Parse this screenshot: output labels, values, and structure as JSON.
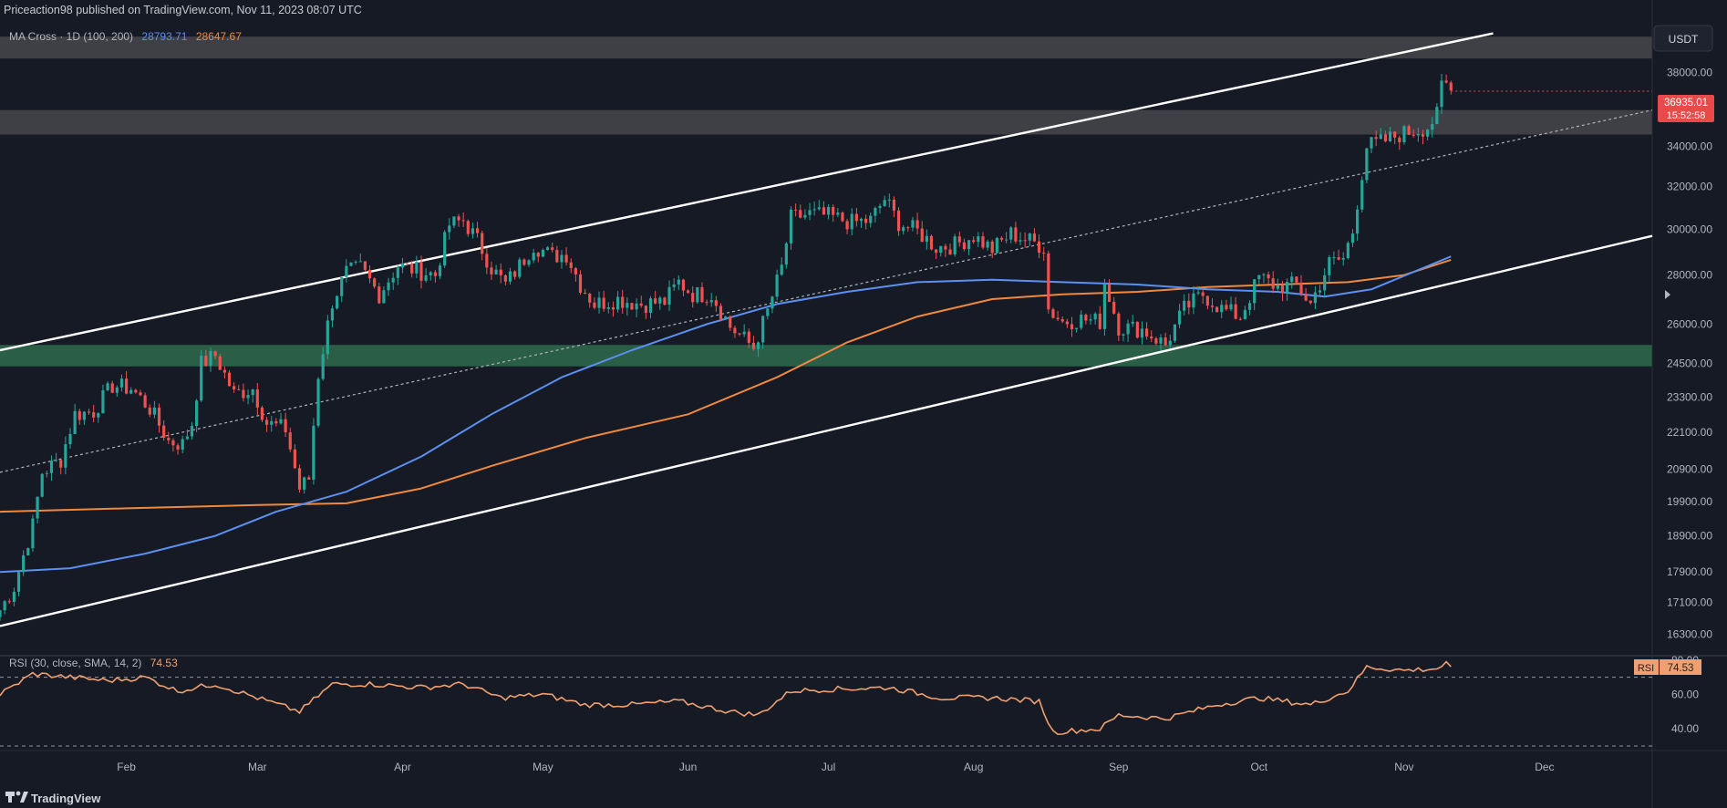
{
  "header": {
    "publisher": "Priceaction98 published on TradingView.com, Nov 11, 2023 08:07 UTC",
    "indicator_label": "MA Cross · 1D (100, 200)",
    "ma100_value": "28793.71",
    "ma200_value": "28647.67",
    "currency": "USDT"
  },
  "rsi": {
    "label": "RSI (30, close, SMA, 14, 2)",
    "value": "74.53",
    "badge_name": "RSI",
    "ticks": [
      "80.00",
      "60.00",
      "40.00"
    ]
  },
  "price_badge": {
    "price": "36935.01",
    "countdown": "15:52:58"
  },
  "footer": {
    "brand": "TradingView"
  },
  "colors": {
    "background": "#161a25",
    "bull": "#26a69a",
    "bear": "#ef5350",
    "ma100": "#5b8ff0",
    "ma200": "#f0883e",
    "rsi": "#f0a070",
    "zone_gray": "#4a4a4d",
    "zone_green": "#2e6b4c",
    "price_badge": "#e84a4a"
  },
  "chart_data": {
    "type": "candlestick",
    "x_ticks": [
      "Feb",
      "Mar",
      "Apr",
      "May",
      "Jun",
      "Jul",
      "Aug",
      "Sep",
      "Oct",
      "Nov",
      "Dec"
    ],
    "y_ticks": [
      "38000.00",
      "34000.00",
      "32000.00",
      "30000.00",
      "28000.00",
      "26000.00",
      "24500.00",
      "23300.00",
      "22100.00",
      "20900.00",
      "19900.00",
      "18900.00",
      "17900.00",
      "17100.00",
      "16300.00"
    ],
    "y_scale": "log",
    "y_range": [
      15800,
      41000
    ],
    "x_range": [
      "2023-01-05",
      "2023-12-24"
    ],
    "price_path": [
      [
        "2023-01-05",
        16900
      ],
      [
        "2023-01-08",
        17500
      ],
      [
        "2023-01-12",
        19200
      ],
      [
        "2023-01-14",
        20800
      ],
      [
        "2023-01-18",
        21200
      ],
      [
        "2023-01-21",
        22700
      ],
      [
        "2023-01-25",
        22800
      ],
      [
        "2023-01-29",
        23700
      ],
      [
        "2023-02-02",
        23600
      ],
      [
        "2023-02-06",
        22900
      ],
      [
        "2023-02-10",
        21800
      ],
      [
        "2023-02-13",
        21700
      ],
      [
        "2023-02-15",
        22400
      ],
      [
        "2023-02-17",
        24500
      ],
      [
        "2023-02-20",
        24800
      ],
      [
        "2023-02-24",
        23400
      ],
      [
        "2023-02-28",
        23600
      ],
      [
        "2023-03-03",
        22400
      ],
      [
        "2023-03-07",
        22200
      ],
      [
        "2023-03-10",
        20300
      ],
      [
        "2023-03-12",
        20600
      ],
      [
        "2023-03-14",
        24100
      ],
      [
        "2023-03-17",
        26900
      ],
      [
        "2023-03-20",
        28100
      ],
      [
        "2023-03-23",
        28300
      ],
      [
        "2023-03-27",
        27200
      ],
      [
        "2023-03-31",
        28400
      ],
      [
        "2023-04-04",
        28200
      ],
      [
        "2023-04-08",
        28000
      ],
      [
        "2023-04-11",
        30200
      ],
      [
        "2023-04-14",
        30400
      ],
      [
        "2023-04-17",
        29500
      ],
      [
        "2023-04-20",
        28300
      ],
      [
        "2023-04-23",
        27600
      ],
      [
        "2023-04-26",
        28400
      ],
      [
        "2023-04-29",
        29300
      ],
      [
        "2023-05-03",
        28800
      ],
      [
        "2023-05-06",
        28900
      ],
      [
        "2023-05-09",
        27600
      ],
      [
        "2023-05-12",
        26800
      ],
      [
        "2023-05-17",
        27000
      ],
      [
        "2023-05-22",
        26800
      ],
      [
        "2023-05-27",
        26900
      ],
      [
        "2023-05-30",
        27700
      ],
      [
        "2023-06-02",
        27200
      ],
      [
        "2023-06-06",
        27200
      ],
      [
        "2023-06-10",
        25900
      ],
      [
        "2023-06-15",
        25100
      ],
      [
        "2023-06-18",
        26500
      ],
      [
        "2023-06-21",
        28300
      ],
      [
        "2023-06-23",
        30500
      ],
      [
        "2023-06-27",
        30700
      ],
      [
        "2023-07-01",
        30600
      ],
      [
        "2023-07-06",
        30300
      ],
      [
        "2023-07-10",
        30400
      ],
      [
        "2023-07-13",
        31400
      ],
      [
        "2023-07-16",
        30300
      ],
      [
        "2023-07-20",
        29900
      ],
      [
        "2023-07-24",
        29200
      ],
      [
        "2023-07-28",
        29300
      ],
      [
        "2023-08-01",
        29700
      ],
      [
        "2023-08-05",
        29100
      ],
      [
        "2023-08-09",
        29800
      ],
      [
        "2023-08-14",
        29400
      ],
      [
        "2023-08-16",
        29200
      ],
      [
        "2023-08-17",
        26600
      ],
      [
        "2023-08-20",
        26100
      ],
      [
        "2023-08-24",
        26200
      ],
      [
        "2023-08-28",
        26100
      ],
      [
        "2023-08-29",
        27700
      ],
      [
        "2023-09-01",
        25900
      ],
      [
        "2023-09-06",
        25800
      ],
      [
        "2023-09-11",
        25200
      ],
      [
        "2023-09-15",
        26600
      ],
      [
        "2023-09-19",
        27200
      ],
      [
        "2023-09-23",
        26600
      ],
      [
        "2023-09-27",
        26300
      ],
      [
        "2023-10-01",
        27900
      ],
      [
        "2023-10-05",
        27500
      ],
      [
        "2023-10-09",
        27600
      ],
      [
        "2023-10-12",
        26800
      ],
      [
        "2023-10-16",
        28500
      ],
      [
        "2023-10-19",
        28700
      ],
      [
        "2023-10-21",
        29900
      ],
      [
        "2023-10-24",
        34000
      ],
      [
        "2023-10-27",
        34200
      ],
      [
        "2023-10-31",
        34600
      ],
      [
        "2023-11-03",
        34800
      ],
      [
        "2023-11-06",
        35000
      ],
      [
        "2023-11-08",
        35600
      ],
      [
        "2023-11-09",
        37200
      ],
      [
        "2023-11-10",
        37300
      ],
      [
        "2023-11-11",
        36935
      ]
    ],
    "ma100": [
      [
        "2023-01-05",
        17900
      ],
      [
        "2023-01-20",
        18000
      ],
      [
        "2023-02-05",
        18400
      ],
      [
        "2023-02-20",
        18900
      ],
      [
        "2023-03-05",
        19600
      ],
      [
        "2023-03-20",
        20200
      ],
      [
        "2023-04-05",
        21300
      ],
      [
        "2023-04-20",
        22700
      ],
      [
        "2023-05-05",
        24000
      ],
      [
        "2023-05-20",
        25000
      ],
      [
        "2023-06-05",
        26000
      ],
      [
        "2023-06-20",
        26800
      ],
      [
        "2023-07-05",
        27300
      ],
      [
        "2023-07-20",
        27700
      ],
      [
        "2023-08-05",
        27800
      ],
      [
        "2023-08-20",
        27700
      ],
      [
        "2023-09-05",
        27600
      ],
      [
        "2023-09-20",
        27400
      ],
      [
        "2023-10-05",
        27300
      ],
      [
        "2023-10-15",
        27100
      ],
      [
        "2023-10-25",
        27400
      ],
      [
        "2023-11-11",
        28794
      ]
    ],
    "ma200": [
      [
        "2023-01-05",
        19600
      ],
      [
        "2023-02-01",
        19700
      ],
      [
        "2023-03-01",
        19800
      ],
      [
        "2023-03-20",
        19850
      ],
      [
        "2023-04-05",
        20300
      ],
      [
        "2023-04-20",
        21000
      ],
      [
        "2023-05-10",
        21900
      ],
      [
        "2023-06-01",
        22700
      ],
      [
        "2023-06-20",
        24000
      ],
      [
        "2023-07-05",
        25300
      ],
      [
        "2023-07-20",
        26300
      ],
      [
        "2023-08-05",
        27000
      ],
      [
        "2023-08-20",
        27200
      ],
      [
        "2023-09-05",
        27300
      ],
      [
        "2023-09-20",
        27500
      ],
      [
        "2023-10-05",
        27600
      ],
      [
        "2023-10-20",
        27700
      ],
      [
        "2023-11-01",
        28000
      ],
      [
        "2023-11-11",
        28648
      ]
    ],
    "channel_upper": [
      [
        "2023-01-05",
        25000
      ],
      [
        "2023-11-20",
        40300
      ]
    ],
    "channel_lower": [
      [
        "2023-01-05",
        16500
      ],
      [
        "2023-12-24",
        29700
      ]
    ],
    "channel_mid": [
      [
        "2023-01-05",
        20800
      ],
      [
        "2023-12-24",
        35900
      ]
    ],
    "zones": [
      {
        "color": "gray",
        "from": 38800,
        "to": 40100
      },
      {
        "color": "gray",
        "from": 34600,
        "to": 35900
      },
      {
        "color": "green",
        "from": 24400,
        "to": 25200
      }
    ],
    "rsi_range": [
      30,
      82
    ],
    "rsi_levels": [
      70,
      30
    ],
    "rsi_path": [
      [
        "2023-01-05",
        60
      ],
      [
        "2023-01-12",
        72
      ],
      [
        "2023-01-20",
        70
      ],
      [
        "2023-01-28",
        68
      ],
      [
        "2023-02-05",
        70
      ],
      [
        "2023-02-12",
        62
      ],
      [
        "2023-02-20",
        66
      ],
      [
        "2023-03-01",
        58
      ],
      [
        "2023-03-10",
        50
      ],
      [
        "2023-03-17",
        66
      ],
      [
        "2023-03-25",
        66
      ],
      [
        "2023-04-05",
        64
      ],
      [
        "2023-04-14",
        66
      ],
      [
        "2023-04-22",
        58
      ],
      [
        "2023-05-01",
        60
      ],
      [
        "2023-05-10",
        54
      ],
      [
        "2023-05-20",
        54
      ],
      [
        "2023-05-30",
        56
      ],
      [
        "2023-06-10",
        50
      ],
      [
        "2023-06-16",
        48
      ],
      [
        "2023-06-23",
        62
      ],
      [
        "2023-07-01",
        63
      ],
      [
        "2023-07-14",
        64
      ],
      [
        "2023-07-25",
        58
      ],
      [
        "2023-08-05",
        58
      ],
      [
        "2023-08-15",
        56
      ],
      [
        "2023-08-18",
        38
      ],
      [
        "2023-08-28",
        40
      ],
      [
        "2023-09-01",
        48
      ],
      [
        "2023-09-11",
        46
      ],
      [
        "2023-09-22",
        54
      ],
      [
        "2023-10-01",
        58
      ],
      [
        "2023-10-12",
        54
      ],
      [
        "2023-10-20",
        62
      ],
      [
        "2023-10-24",
        76
      ],
      [
        "2023-11-01",
        74
      ],
      [
        "2023-11-08",
        75
      ],
      [
        "2023-11-10",
        78
      ],
      [
        "2023-11-11",
        74.53
      ]
    ]
  }
}
